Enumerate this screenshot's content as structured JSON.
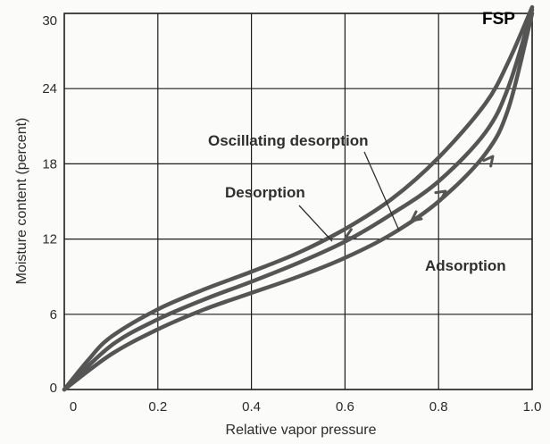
{
  "chart_data": {
    "type": "line",
    "title": "",
    "xlabel": "Relative vapor pressure",
    "ylabel": "Moisture content (percent)",
    "xlim": [
      0,
      1.0
    ],
    "ylim": [
      0,
      30
    ],
    "grid": true,
    "x_ticks": [
      0,
      0.2,
      0.4,
      0.6,
      0.8,
      1.0
    ],
    "x_tick_labels": [
      "0",
      "0.2",
      "0.4",
      "0.6",
      "0.8",
      "1.0"
    ],
    "y_ticks": [
      0,
      6,
      12,
      18,
      24,
      30
    ],
    "y_tick_labels": [
      "0",
      "6",
      "12",
      "18",
      "24",
      "30"
    ],
    "series": [
      {
        "name": "Desorption",
        "x": [
          0,
          0.05,
          0.1,
          0.2,
          0.3,
          0.4,
          0.5,
          0.6,
          0.7,
          0.8,
          0.9,
          0.95,
          1.0
        ],
        "y": [
          0,
          2.3,
          4.2,
          6.4,
          8.0,
          9.4,
          10.9,
          12.8,
          15.2,
          18.5,
          22.8,
          26.2,
          30.5
        ]
      },
      {
        "name": "Oscillating desorption",
        "x": [
          0,
          0.1,
          0.2,
          0.3,
          0.4,
          0.5,
          0.6,
          0.7,
          0.8,
          0.9,
          0.95,
          1.0
        ],
        "y": [
          0,
          3.5,
          5.6,
          7.2,
          8.6,
          10.1,
          11.8,
          14.0,
          16.6,
          20.5,
          24.2,
          30.3
        ]
      },
      {
        "name": "Adsorption",
        "x": [
          0,
          0.1,
          0.2,
          0.3,
          0.4,
          0.5,
          0.6,
          0.7,
          0.8,
          0.9,
          0.95,
          1.0
        ],
        "y": [
          0,
          2.8,
          4.8,
          6.4,
          7.7,
          9.0,
          10.5,
          12.4,
          15.0,
          18.8,
          22.5,
          30.0
        ]
      }
    ],
    "annotations": {
      "fsp": "FSP",
      "oscillating_desorption": "Oscillating desorption",
      "desorption": "Desorption",
      "adsorption": "Adsorption"
    }
  }
}
